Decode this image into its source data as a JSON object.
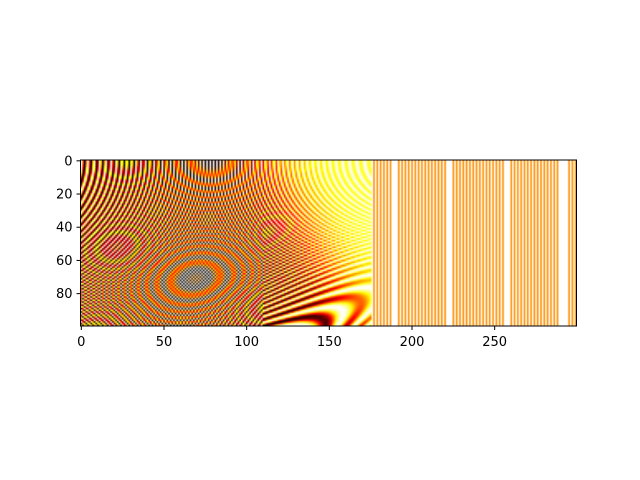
{
  "chart_data": {
    "type": "heatmap",
    "title": "",
    "xlabel": "",
    "ylabel": "",
    "colormap": "hot",
    "shape": {
      "rows": 100,
      "cols": 300
    },
    "xlim": [
      -0.5,
      299.5
    ],
    "ylim": [
      99.5,
      -0.5
    ],
    "y_axis_inverted": true,
    "x_ticks": [
      0,
      50,
      100,
      150,
      200,
      250
    ],
    "x_tick_labels": [
      "0",
      "50",
      "100",
      "150",
      "200",
      "250"
    ],
    "y_ticks": [
      0,
      20,
      40,
      60,
      80
    ],
    "y_tick_labels": [
      "0",
      "20",
      "40",
      "60",
      "80"
    ],
    "pattern": "interference fringe stripes: high spatial frequency dark/red/yellow bands on the left curving downward, transitioning to bright yellow around column 120-170 and fine alternating orange/white vertical stripes toward the right"
  }
}
